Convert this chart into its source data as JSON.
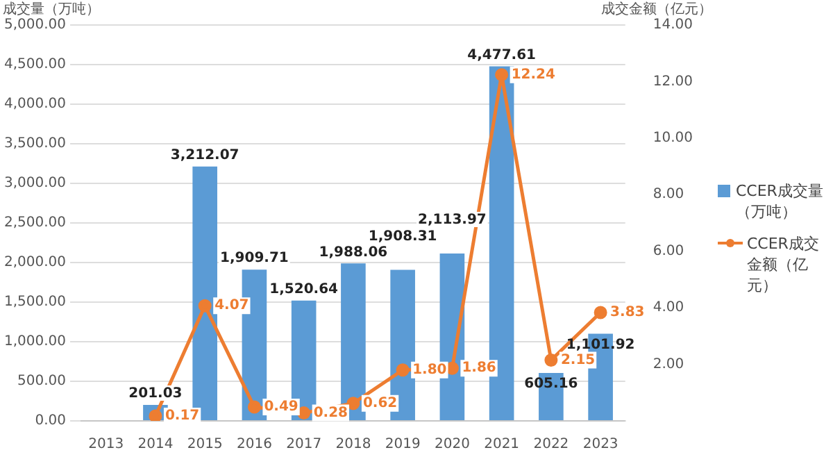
{
  "chart_data": {
    "type": "bar",
    "categories": [
      "2013",
      "2014",
      "2015",
      "2016",
      "2017",
      "2018",
      "2019",
      "2020",
      "2021",
      "2022",
      "2023"
    ],
    "ylabel": "成交量（万吨）",
    "y2label": "成交金额（亿元）",
    "series": [
      {
        "name": "CCER成交量（万吨）",
        "color": "#5b9bd5",
        "values": [
          null,
          201.03,
          3212.07,
          1909.71,
          1520.64,
          1988.06,
          1908.31,
          2113.97,
          4477.61,
          605.16,
          1101.92
        ]
      },
      {
        "name": "CCER成交金额（亿元）",
        "type": "line",
        "axis": "y2",
        "color": "#ed7d31",
        "marker": "circle",
        "values": [
          null,
          0.17,
          4.07,
          0.49,
          0.28,
          0.62,
          1.8,
          1.86,
          12.24,
          2.15,
          3.83
        ],
        "value_labels": [
          null,
          "0.17",
          "4.07",
          "0.49",
          "0.28",
          "0.62",
          "1.80",
          "1.86",
          "12.24",
          "2.15",
          "3.83"
        ]
      }
    ],
    "value_labels": [
      null,
      "201.03",
      "3,212.07",
      "1,909.71",
      "1,520.64",
      "1,988.06",
      "1,908.31",
      "2,113.97",
      "4,477.61",
      "605.16",
      "1,101.92"
    ],
    "ylim": [
      0,
      5000
    ],
    "yticks": [
      {
        "value": 0,
        "label": "0.00"
      },
      {
        "value": 500,
        "label": "500.00"
      },
      {
        "value": 1000,
        "label": "1,000.00"
      },
      {
        "value": 1500,
        "label": "1,500.00"
      },
      {
        "value": 2000,
        "label": "2,000.00"
      },
      {
        "value": 2500,
        "label": "2,500.00"
      },
      {
        "value": 3000,
        "label": "3,000.00"
      },
      {
        "value": 3500,
        "label": "3,500.00"
      },
      {
        "value": 4000,
        "label": "4,000.00"
      },
      {
        "value": 4500,
        "label": "4,500.00"
      },
      {
        "value": 5000,
        "label": "5,000.00"
      }
    ],
    "y2lim": [
      0,
      14
    ],
    "y2ticks": [
      {
        "value": 0,
        "label": null
      },
      {
        "value": 2,
        "label": "2.00"
      },
      {
        "value": 4,
        "label": "4.00"
      },
      {
        "value": 6,
        "label": "6.00"
      },
      {
        "value": 8,
        "label": "8.00"
      },
      {
        "value": 10,
        "label": "10.00"
      },
      {
        "value": 12,
        "label": "12.00"
      },
      {
        "value": 14,
        "label": "14.00"
      }
    ],
    "grid": "y",
    "legend": "right"
  }
}
